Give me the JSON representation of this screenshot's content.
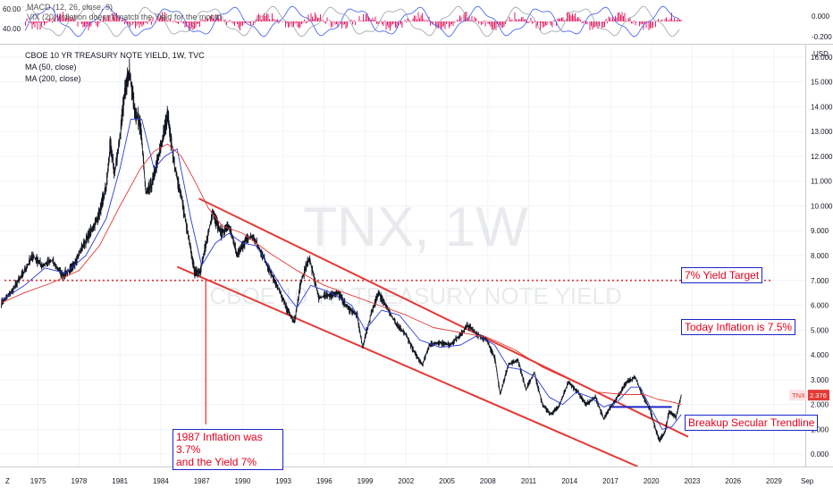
{
  "indicator_pane": {
    "left_ticks": [
      "60.00",
      "40.00"
    ],
    "right_ticks": [
      "0.000",
      "-0.200"
    ],
    "legend": [
      "MACD (12, 26, close, 9)",
      "VIX (20) Inflation doesn't match the Yield for the month"
    ],
    "hist_color": "#e91e63"
  },
  "main": {
    "legend": [
      "CBOE 10 YR TREASURY NOTE YIELD, 1W, TVC",
      "MA (50, close)",
      "MA (200, close)"
    ],
    "watermark_symbol": "TNX, 1W",
    "watermark_name": "CBOE 10 YR TREASURY NOTE YIELD",
    "price_tag_symbol": "TNX",
    "price_tag_value": "2.376",
    "price_axis_label": "USD",
    "bottom_left_label": "Z",
    "bottom_right_label": "Sep",
    "colors": {
      "price": "#131722",
      "ma50": "#2a3bd8",
      "ma200": "#e53935",
      "trend": "#e53935",
      "target_line": "#e53935",
      "support": "#1a24c8"
    }
  },
  "annotations": {
    "yield_target": "7% Yield Target",
    "today_inflation": "Today Inflation is 7.5%",
    "breakup": "Breakup Secular Trendline",
    "inflation_1987_line1": "1987 Inflation was 3.7%",
    "inflation_1987_line2": "and the Yield 7%"
  },
  "chart_data": {
    "type": "line",
    "title": "CBOE 10 YR TREASURY NOTE YIELD, 1W, TVC",
    "ylabel": "USD",
    "ylim": [
      -0.5,
      16.5
    ],
    "y_ticks": [
      0,
      1,
      2,
      3,
      4,
      5,
      6,
      7,
      8,
      9,
      10,
      11,
      12,
      13,
      14,
      15,
      16
    ],
    "x_ticks": [
      "1975",
      "1978",
      "1981",
      "1984",
      "1987",
      "1990",
      "1993",
      "1996",
      "1999",
      "2002",
      "2005",
      "2008",
      "2011",
      "2014",
      "2017",
      "2020",
      "2023",
      "2026",
      "2029"
    ],
    "xlim": [
      1972.2,
      2031.3
    ],
    "series": [
      {
        "name": "TNX",
        "x": [
          1972.3,
          1973.0,
          1973.8,
          1974.6,
          1975.3,
          1976.0,
          1976.8,
          1977.5,
          1978.2,
          1978.9,
          1979.5,
          1980.0,
          1980.3,
          1980.6,
          1981.0,
          1981.4,
          1981.7,
          1982.1,
          1982.5,
          1982.9,
          1983.3,
          1983.8,
          1984.2,
          1984.5,
          1985.0,
          1985.5,
          1986.0,
          1986.5,
          1986.9,
          1987.3,
          1987.8,
          1988.4,
          1989.0,
          1989.6,
          1990.2,
          1990.7,
          1991.3,
          1992.0,
          1992.6,
          1993.2,
          1993.8,
          1994.3,
          1994.9,
          1995.6,
          1996.3,
          1997.0,
          1997.7,
          1998.4,
          1998.8,
          1999.5,
          2000.0,
          2000.6,
          2001.3,
          2002.0,
          2002.6,
          2003.2,
          2003.7,
          2004.4,
          2005.2,
          2006.0,
          2006.5,
          2007.3,
          2007.9,
          2008.5,
          2008.9,
          2009.5,
          2010.2,
          2010.8,
          2011.4,
          2012.0,
          2012.6,
          2013.2,
          2013.9,
          2014.6,
          2015.2,
          2015.9,
          2016.5,
          2016.9,
          2017.5,
          2018.2,
          2018.8,
          2019.4,
          2019.9,
          2020.3,
          2020.6,
          2021.0,
          2021.3,
          2021.8,
          2022.2
        ],
        "y": [
          6.1,
          6.5,
          7.2,
          8.0,
          7.6,
          7.8,
          7.2,
          7.5,
          8.3,
          9.0,
          9.7,
          10.8,
          12.5,
          11.3,
          12.8,
          14.8,
          15.4,
          13.8,
          13.3,
          10.5,
          10.8,
          11.9,
          12.9,
          13.7,
          11.6,
          10.4,
          8.8,
          7.3,
          7.4,
          8.4,
          9.8,
          8.9,
          9.2,
          8.0,
          8.6,
          8.8,
          8.2,
          7.4,
          6.7,
          5.9,
          5.3,
          7.0,
          7.9,
          6.3,
          6.4,
          6.5,
          5.9,
          5.6,
          4.3,
          5.8,
          6.5,
          5.9,
          5.2,
          4.8,
          4.1,
          3.6,
          4.4,
          4.5,
          4.4,
          4.8,
          5.2,
          4.8,
          4.6,
          3.9,
          2.4,
          3.6,
          3.8,
          2.6,
          3.3,
          2.0,
          1.6,
          1.9,
          2.9,
          2.5,
          2.0,
          2.3,
          1.4,
          1.8,
          2.3,
          2.9,
          3.1,
          2.3,
          1.8,
          1.0,
          0.55,
          0.9,
          1.7,
          1.5,
          2.4
        ]
      },
      {
        "name": "MA (50, close)",
        "x": [
          1972.3,
          1974.0,
          1975.5,
          1977.0,
          1978.5,
          1980.0,
          1981.0,
          1981.8,
          1982.6,
          1983.5,
          1984.3,
          1985.2,
          1986.2,
          1987.0,
          1988.0,
          1989.0,
          1990.0,
          1991.0,
          1992.0,
          1993.0,
          1994.0,
          1995.0,
          1996.5,
          1998.0,
          1999.0,
          2000.2,
          2001.5,
          2003.0,
          2004.5,
          2006.0,
          2007.3,
          2008.5,
          2009.5,
          2010.5,
          2011.5,
          2012.5,
          2013.5,
          2014.5,
          2015.5,
          2016.5,
          2017.5,
          2018.5,
          2019.2,
          2020.0,
          2020.8,
          2021.5,
          2022.2
        ],
        "y": [
          6.2,
          6.8,
          7.5,
          7.3,
          8.0,
          9.5,
          11.5,
          13.5,
          13.5,
          11.5,
          12.0,
          12.3,
          9.5,
          7.6,
          8.5,
          8.9,
          8.5,
          8.4,
          7.5,
          6.6,
          5.9,
          6.8,
          6.5,
          6.0,
          5.0,
          5.8,
          5.6,
          4.6,
          4.3,
          4.4,
          4.8,
          4.4,
          3.5,
          3.4,
          3.1,
          2.3,
          2.0,
          2.5,
          2.3,
          1.9,
          2.1,
          2.7,
          2.7,
          1.8,
          1.0,
          1.1,
          1.6
        ]
      },
      {
        "name": "MA (200, close)",
        "x": [
          1972.3,
          1974.0,
          1976.0,
          1978.0,
          1979.5,
          1981.0,
          1982.5,
          1983.5,
          1984.5,
          1985.5,
          1986.5,
          1987.5,
          1988.5,
          1990.0,
          1992.0,
          1994.0,
          1996.0,
          1998.0,
          2000.0,
          2002.0,
          2004.0,
          2006.0,
          2008.0,
          2010.0,
          2012.0,
          2014.0,
          2016.0,
          2018.0,
          2019.5,
          2020.5,
          2021.5,
          2022.2
        ],
        "y": [
          6.1,
          6.5,
          6.9,
          7.4,
          8.4,
          10.0,
          11.5,
          12.2,
          12.5,
          12.0,
          11.0,
          9.9,
          9.2,
          8.9,
          8.1,
          7.4,
          6.8,
          6.4,
          6.0,
          5.6,
          5.1,
          4.9,
          4.7,
          4.2,
          3.5,
          3.0,
          2.5,
          2.4,
          2.4,
          2.2,
          2.1,
          2.0
        ]
      }
    ],
    "reference_lines": [
      {
        "type": "horizontal",
        "y": 7.0,
        "style": "dotted"
      },
      {
        "type": "trendline",
        "from": [
          1986.8,
          10.3
        ],
        "to": [
          2022.7,
          0.7
        ]
      },
      {
        "type": "trendline",
        "from": [
          1985.2,
          7.55
        ],
        "to": [
          2019.0,
          -0.5
        ]
      },
      {
        "type": "support",
        "from": [
          2017.0,
          1.9
        ],
        "to": [
          2021.5,
          1.9
        ]
      },
      {
        "type": "vertical-marker",
        "x": 1987.3,
        "from_y": 7.0,
        "to_y": 1.2
      }
    ]
  }
}
